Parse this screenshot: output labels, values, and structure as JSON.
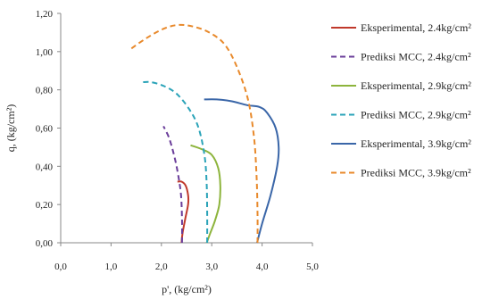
{
  "chart_data": {
    "type": "line",
    "xlabel": "p', (kg/cm²)",
    "ylabel": "q, (kg/cm²)",
    "xlim": [
      0,
      5
    ],
    "ylim": [
      0,
      1.2
    ],
    "xticks": [
      0,
      1,
      2,
      3,
      4,
      5
    ],
    "yticks": [
      0,
      0.2,
      0.4,
      0.6,
      0.8,
      1.0,
      1.2
    ],
    "xtick_labels": [
      "0,0",
      "1,0",
      "2,0",
      "3,0",
      "4,0",
      "5,0"
    ],
    "ytick_labels": [
      "0,00",
      "0,20",
      "0,40",
      "0,60",
      "0,80",
      "1,00",
      "1,20"
    ],
    "grid": false,
    "legend_position": "right",
    "series": [
      {
        "name": "Eksperimental, 2.4kg/cm²",
        "color": "#c0392b",
        "style": "solid",
        "points": [
          [
            2.4,
            0.0
          ],
          [
            2.42,
            0.05
          ],
          [
            2.47,
            0.12
          ],
          [
            2.53,
            0.2
          ],
          [
            2.53,
            0.25
          ],
          [
            2.48,
            0.3
          ],
          [
            2.4,
            0.32
          ],
          [
            2.32,
            0.32
          ]
        ]
      },
      {
        "name": "Prediksi MCC, 2.4kg/cm²",
        "color": "#6a3d9a",
        "style": "dashed",
        "points": [
          [
            2.41,
            0.0
          ],
          [
            2.41,
            0.12
          ],
          [
            2.39,
            0.25
          ],
          [
            2.33,
            0.36
          ],
          [
            2.25,
            0.46
          ],
          [
            2.15,
            0.55
          ],
          [
            2.04,
            0.61
          ]
        ]
      },
      {
        "name": "Eksperimental, 2.9kg/cm²",
        "color": "#8db43c",
        "style": "solid",
        "points": [
          [
            2.9,
            0.0
          ],
          [
            2.97,
            0.05
          ],
          [
            3.07,
            0.12
          ],
          [
            3.15,
            0.2
          ],
          [
            3.17,
            0.3
          ],
          [
            3.13,
            0.39
          ],
          [
            3.0,
            0.46
          ],
          [
            2.8,
            0.49
          ],
          [
            2.58,
            0.51
          ]
        ]
      },
      {
        "name": "Prediksi MCC, 2.9kg/cm²",
        "color": "#2aa3b8",
        "style": "dashed",
        "points": [
          [
            2.91,
            0.0
          ],
          [
            2.91,
            0.15
          ],
          [
            2.9,
            0.3
          ],
          [
            2.86,
            0.45
          ],
          [
            2.74,
            0.6
          ],
          [
            2.55,
            0.7
          ],
          [
            2.3,
            0.78
          ],
          [
            2.05,
            0.82
          ],
          [
            1.8,
            0.84
          ],
          [
            1.62,
            0.84
          ]
        ]
      },
      {
        "name": "Eksperimental, 3.9kg/cm²",
        "color": "#3a66a8",
        "style": "solid",
        "points": [
          [
            3.9,
            0.0
          ],
          [
            4.0,
            0.1
          ],
          [
            4.17,
            0.25
          ],
          [
            4.3,
            0.4
          ],
          [
            4.33,
            0.5
          ],
          [
            4.27,
            0.6
          ],
          [
            4.1,
            0.68
          ],
          [
            3.95,
            0.71
          ],
          [
            3.7,
            0.72
          ],
          [
            3.4,
            0.74
          ],
          [
            3.1,
            0.75
          ],
          [
            2.85,
            0.75
          ]
        ]
      },
      {
        "name": "Prediksi MCC, 3.9kg/cm²",
        "color": "#e8892b",
        "style": "dashed",
        "points": [
          [
            3.91,
            0.0
          ],
          [
            3.91,
            0.15
          ],
          [
            3.89,
            0.35
          ],
          [
            3.84,
            0.55
          ],
          [
            3.72,
            0.75
          ],
          [
            3.5,
            0.92
          ],
          [
            3.25,
            1.04
          ],
          [
            2.95,
            1.1
          ],
          [
            2.65,
            1.13
          ],
          [
            2.35,
            1.14
          ],
          [
            2.05,
            1.12
          ],
          [
            1.7,
            1.07
          ],
          [
            1.37,
            1.01
          ]
        ]
      }
    ]
  }
}
